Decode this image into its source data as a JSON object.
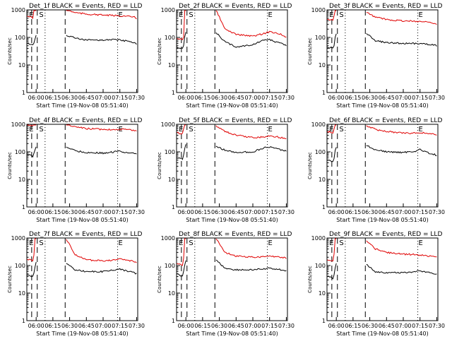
{
  "common": {
    "title_suffix": "BLACK = Events, RED = LLD",
    "ylabel": "Counts/sec",
    "xlabel": "Start Time (19-Nov-08 05:51:40)",
    "xticks": [
      "06:00",
      "06:15",
      "06:30",
      "06:45",
      "07:00",
      "07:15",
      "07:30"
    ],
    "yticks": [
      "1",
      "10",
      "100",
      "1000"
    ],
    "marker_labels": [
      "E",
      "S",
      "E"
    ],
    "colors": {
      "events": "#000000",
      "lld": "#e00000"
    }
  },
  "chart_data": [
    {
      "type": "line",
      "title": "Det_1f BLACK = Events, RED = LLD",
      "x": [
        "05:52",
        "05:57",
        "05:58",
        "05:59",
        "06:00",
        "06:25",
        "06:26",
        "06:27",
        "06:35",
        "06:45",
        "07:00",
        "07:10",
        "07:15",
        "07:20",
        "07:25",
        "07:28",
        "07:30"
      ],
      "series": [
        {
          "name": "Events",
          "color": "#000000",
          "values": [
            60,
            55,
            60,
            90,
            120,
            null,
            null,
            120,
            95,
            80,
            80,
            85,
            80,
            75,
            70,
            65,
            55
          ]
        },
        {
          "name": "LLD",
          "color": "#e00000",
          "values": [
            600,
            520,
            1000,
            1000,
            1000,
            null,
            null,
            1000,
            800,
            700,
            650,
            620,
            610,
            590,
            560,
            540,
            500
          ]
        }
      ],
      "xlim": [
        "05:51:40",
        "07:31:00"
      ],
      "ylim": [
        1,
        1000
      ],
      "yscale": "log"
    },
    {
      "type": "line",
      "title": "Det_2f BLACK = Events, RED = LLD",
      "x": [
        "05:52",
        "05:57",
        "05:58",
        "05:59",
        "06:00",
        "06:25",
        "06:26",
        "06:27",
        "06:35",
        "06:45",
        "07:00",
        "07:10",
        "07:15",
        "07:20",
        "07:25",
        "07:28",
        "07:30"
      ],
      "series": [
        {
          "name": "Events",
          "color": "#000000",
          "values": [
            45,
            40,
            50,
            100,
            150,
            null,
            null,
            150,
            70,
            45,
            55,
            80,
            85,
            70,
            60,
            55,
            50
          ]
        },
        {
          "name": "LLD",
          "color": "#e00000",
          "values": [
            90,
            85,
            100,
            1000,
            1000,
            null,
            null,
            1000,
            200,
            130,
            110,
            140,
            160,
            150,
            130,
            110,
            100
          ]
        }
      ],
      "xlim": [
        "05:51:40",
        "07:31:00"
      ],
      "ylim": [
        1,
        1000
      ],
      "yscale": "log"
    },
    {
      "type": "line",
      "title": "Det_3f BLACK = Events, RED = LLD",
      "x": [
        "05:52",
        "05:57",
        "05:58",
        "05:59",
        "06:00",
        "06:25",
        "06:26",
        "06:27",
        "06:35",
        "06:45",
        "07:00",
        "07:10",
        "07:15",
        "07:20",
        "07:25",
        "07:28",
        "07:30"
      ],
      "series": [
        {
          "name": "Events",
          "color": "#000000",
          "values": [
            45,
            40,
            50,
            100,
            140,
            null,
            null,
            140,
            75,
            65,
            60,
            60,
            60,
            58,
            55,
            52,
            50
          ]
        },
        {
          "name": "LLD",
          "color": "#e00000",
          "values": [
            450,
            420,
            600,
            1000,
            1000,
            null,
            null,
            800,
            550,
            450,
            400,
            390,
            380,
            370,
            350,
            330,
            300
          ]
        }
      ],
      "xlim": [
        "05:51:40",
        "07:31:00"
      ],
      "ylim": [
        1,
        1000
      ],
      "yscale": "log"
    },
    {
      "type": "line",
      "title": "Det_4f BLACK = Events, RED = LLD",
      "x": [
        "05:52",
        "05:57",
        "05:58",
        "05:59",
        "06:00",
        "06:25",
        "06:26",
        "06:27",
        "06:35",
        "06:45",
        "07:00",
        "07:10",
        "07:15",
        "07:20",
        "07:25",
        "07:28",
        "07:30"
      ],
      "series": [
        {
          "name": "Events",
          "color": "#000000",
          "values": [
            80,
            70,
            90,
            120,
            150,
            null,
            null,
            150,
            110,
            95,
            90,
            100,
            110,
            95,
            90,
            85,
            80
          ]
        },
        {
          "name": "LLD",
          "color": "#e00000",
          "values": [
            1000,
            900,
            1000,
            1000,
            1000,
            null,
            null,
            1000,
            800,
            700,
            650,
            650,
            660,
            640,
            620,
            610,
            600
          ]
        }
      ],
      "xlim": [
        "05:51:40",
        "07:31:00"
      ],
      "ylim": [
        1,
        1000
      ],
      "yscale": "log"
    },
    {
      "type": "line",
      "title": "Det_5f BLACK = Events, RED = LLD",
      "x": [
        "05:52",
        "05:57",
        "05:58",
        "05:59",
        "06:00",
        "06:25",
        "06:26",
        "06:27",
        "06:35",
        "06:45",
        "07:00",
        "07:10",
        "07:15",
        "07:20",
        "07:25",
        "07:28",
        "07:30"
      ],
      "series": [
        {
          "name": "Events",
          "color": "#000000",
          "values": [
            60,
            55,
            80,
            140,
            200,
            null,
            null,
            160,
            115,
            95,
            100,
            140,
            150,
            135,
            120,
            110,
            105
          ]
        },
        {
          "name": "LLD",
          "color": "#e00000",
          "values": [
            500,
            450,
            700,
            1000,
            1000,
            null,
            null,
            900,
            550,
            400,
            330,
            350,
            380,
            360,
            330,
            310,
            290
          ]
        }
      ],
      "xlim": [
        "05:51:40",
        "07:31:00"
      ],
      "ylim": [
        1,
        1000
      ],
      "yscale": "log"
    },
    {
      "type": "line",
      "title": "Det_6f BLACK = Events, RED = LLD",
      "x": [
        "05:52",
        "05:57",
        "05:58",
        "05:59",
        "06:00",
        "06:25",
        "06:26",
        "06:27",
        "06:35",
        "06:45",
        "07:00",
        "07:10",
        "07:15",
        "07:20",
        "07:25",
        "07:28",
        "07:30"
      ],
      "series": [
        {
          "name": "Events",
          "color": "#000000",
          "values": [
            50,
            45,
            60,
            110,
            150,
            null,
            null,
            170,
            120,
            100,
            95,
            105,
            120,
            100,
            85,
            80,
            75
          ]
        },
        {
          "name": "LLD",
          "color": "#e00000",
          "values": [
            550,
            500,
            700,
            1000,
            1000,
            null,
            null,
            900,
            650,
            550,
            480,
            480,
            500,
            480,
            450,
            430,
            400
          ]
        }
      ],
      "xlim": [
        "05:51:40",
        "07:31:00"
      ],
      "ylim": [
        1,
        1000
      ],
      "yscale": "log"
    },
    {
      "type": "line",
      "title": "Det_7f BLACK = Events, RED = LLD",
      "x": [
        "05:52",
        "05:57",
        "05:58",
        "05:59",
        "06:00",
        "06:25",
        "06:26",
        "06:27",
        "06:35",
        "06:45",
        "07:00",
        "07:10",
        "07:15",
        "07:20",
        "07:25",
        "07:28",
        "07:30"
      ],
      "series": [
        {
          "name": "Events",
          "color": "#000000",
          "values": [
            45,
            40,
            50,
            90,
            130,
            null,
            null,
            120,
            70,
            60,
            60,
            70,
            75,
            65,
            60,
            55,
            50
          ]
        },
        {
          "name": "LLD",
          "color": "#e00000",
          "values": [
            170,
            150,
            250,
            1000,
            1000,
            null,
            null,
            900,
            250,
            160,
            150,
            160,
            170,
            160,
            150,
            140,
            130
          ]
        }
      ],
      "xlim": [
        "05:51:40",
        "07:31:00"
      ],
      "ylim": [
        1,
        1000
      ],
      "yscale": "log"
    },
    {
      "type": "line",
      "title": "Det_8f BLACK = Events, RED = LLD",
      "x": [
        "05:52",
        "05:57",
        "05:58",
        "05:59",
        "06:00",
        "06:25",
        "06:26",
        "06:27",
        "06:35",
        "06:45",
        "07:00",
        "07:10",
        "07:15",
        "07:20",
        "07:25",
        "07:28",
        "07:30"
      ],
      "series": [
        {
          "name": "Events",
          "color": "#000000",
          "values": [
            50,
            40,
            60,
            110,
            160,
            null,
            null,
            160,
            80,
            70,
            70,
            75,
            80,
            75,
            70,
            68,
            65
          ]
        },
        {
          "name": "LLD",
          "color": "#e00000",
          "values": [
            120,
            100,
            200,
            1000,
            1000,
            null,
            null,
            1000,
            300,
            220,
            200,
            210,
            220,
            210,
            200,
            195,
            190
          ]
        }
      ],
      "xlim": [
        "05:51:40",
        "07:31:00"
      ],
      "ylim": [
        1,
        1000
      ],
      "yscale": "log"
    },
    {
      "type": "line",
      "title": "Det_9f BLACK = Events, RED = LLD",
      "x": [
        "05:52",
        "05:57",
        "05:58",
        "05:59",
        "06:00",
        "06:25",
        "06:26",
        "06:27",
        "06:35",
        "06:45",
        "07:00",
        "07:10",
        "07:15",
        "07:20",
        "07:25",
        "07:28",
        "07:30"
      ],
      "series": [
        {
          "name": "Events",
          "color": "#000000",
          "values": [
            40,
            35,
            45,
            80,
            120,
            null,
            null,
            110,
            60,
            55,
            55,
            60,
            65,
            58,
            55,
            52,
            50
          ]
        },
        {
          "name": "LLD",
          "color": "#e00000",
          "values": [
            160,
            140,
            250,
            1000,
            1000,
            null,
            null,
            800,
            400,
            300,
            260,
            250,
            240,
            230,
            220,
            210,
            200
          ]
        }
      ],
      "xlim": [
        "05:51:40",
        "07:31:00"
      ],
      "ylim": [
        1,
        1000
      ],
      "yscale": "log"
    }
  ]
}
